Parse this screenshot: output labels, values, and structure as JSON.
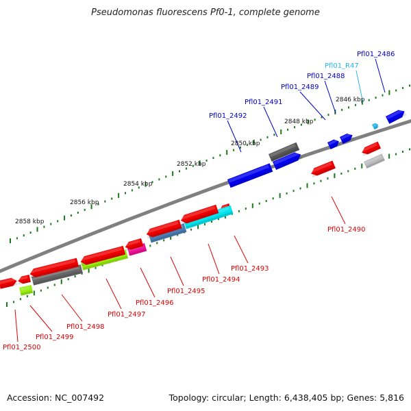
{
  "title": "Pseudomonas fluorescens Pf0-1, complete genome",
  "footer": {
    "accession": "Accession: NC_007492",
    "stats": "Topology: circular; Length: 6,438,405 bp; Genes: 5,816"
  },
  "colors": {
    "backbone": "#808080",
    "ticks_major": "#1a7a1a",
    "ticks_minor": "#1a7a1a",
    "label_forward": "#0000cc",
    "label_reverse": "#dd0000",
    "label_rna": "#29b6e8"
  },
  "scale_ticks": [
    {
      "label": "2846 kbp"
    },
    {
      "label": "2848 kbp"
    },
    {
      "label": "2850 kbp"
    },
    {
      "label": "2852 kbp"
    },
    {
      "label": "2854 kbp"
    },
    {
      "label": "2856 kbp"
    },
    {
      "label": "2858 kbp"
    }
  ],
  "forward_labels": [
    {
      "text": "Pfl01_2486",
      "kind": "forward"
    },
    {
      "text": "Pfl01_R47",
      "kind": "rna"
    },
    {
      "text": "Pfl01_2488",
      "kind": "forward"
    },
    {
      "text": "Pfl01_2489",
      "kind": "forward"
    },
    {
      "text": "Pfl01_2491",
      "kind": "forward"
    },
    {
      "text": "Pfl01_2492",
      "kind": "forward"
    }
  ],
  "reverse_labels": [
    {
      "text": "Pfl01_2490"
    },
    {
      "text": "Pfl01_2493"
    },
    {
      "text": "Pfl01_2494"
    },
    {
      "text": "Pfl01_2495"
    },
    {
      "text": "Pfl01_2496"
    },
    {
      "text": "Pfl01_2497"
    },
    {
      "text": "Pfl01_2498"
    },
    {
      "text": "Pfl01_2499"
    },
    {
      "text": "Pfl01_2500"
    }
  ],
  "features": [
    {
      "name": "gene-2486",
      "color": "#0000ee",
      "strand": "forward"
    },
    {
      "name": "gene-R47",
      "color": "#29b6e8",
      "strand": "forward"
    },
    {
      "name": "gene-2488",
      "color": "#0000ee",
      "strand": "forward"
    },
    {
      "name": "gene-2489",
      "color": "#0000ee",
      "strand": "forward"
    },
    {
      "name": "gene-2491",
      "color": "#0000ee",
      "strand": "forward"
    },
    {
      "name": "gene-2492",
      "color": "#0000ee",
      "strand": "forward"
    },
    {
      "name": "gene-dark",
      "color": "#555555",
      "strand": "forward"
    },
    {
      "name": "gene-2490",
      "color": "#ee0000",
      "strand": "reverse"
    },
    {
      "name": "gene-red-small",
      "color": "#ee0000",
      "strand": "reverse"
    },
    {
      "name": "gene-light-gray",
      "color": "#bbbbbb",
      "strand": "reverse"
    },
    {
      "name": "gene-2493",
      "color": "#ee0000",
      "strand": "reverse"
    },
    {
      "name": "gene-2494",
      "color": "#00e5ee",
      "strand": "reverse"
    },
    {
      "name": "gene-2495",
      "color": "#4a7fb5",
      "strand": "reverse"
    },
    {
      "name": "gene-2496",
      "color": "#ee1199",
      "strand": "reverse"
    },
    {
      "name": "gene-2497",
      "color": "#99ee11",
      "strand": "reverse"
    },
    {
      "name": "gene-2498",
      "color": "#666666",
      "strand": "reverse"
    },
    {
      "name": "gene-2499",
      "color": "#99ee11",
      "strand": "reverse"
    },
    {
      "name": "gene-2500",
      "color": "#ee0000",
      "strand": "reverse"
    }
  ]
}
